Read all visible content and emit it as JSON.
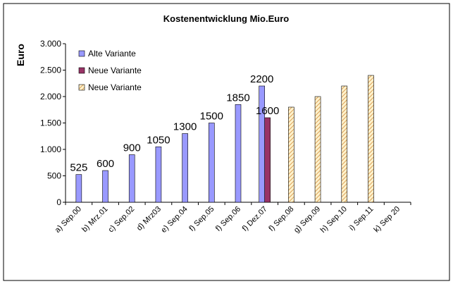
{
  "chart_data": {
    "type": "bar",
    "title": "Kostenentwicklung Mio.Euro",
    "ylabel": "Euro",
    "xlabel": "",
    "ylim": [
      0,
      3000
    ],
    "yticks": [
      0,
      500,
      1000,
      1500,
      2000,
      2500,
      3000
    ],
    "ytick_labels": [
      "0",
      "500",
      "1.000",
      "1.500",
      "2.000",
      "2.500",
      "3.000"
    ],
    "grid": false,
    "legend_position": "top-left",
    "categories": [
      "a) Sep.00",
      "b) Mrz.01",
      "c) Sep.02",
      "d) Mrz03",
      "e) Sep.04",
      "f) Sep.05",
      "f) Sep.06",
      "f) Dez.07",
      "f) Sep.08",
      "g) Sep.09",
      "h) Sep.10",
      "i) Sep.11",
      "k) Sep 20"
    ],
    "series": [
      {
        "name": "Alte Variante",
        "color": "#9999FF",
        "pattern": "solid",
        "values": [
          525,
          600,
          900,
          1050,
          1300,
          1500,
          1850,
          2200,
          null,
          null,
          null,
          null,
          null
        ],
        "labels": [
          "525",
          "600",
          "900",
          "1050",
          "1300",
          "1500",
          "1850",
          "2200",
          null,
          null,
          null,
          null,
          null
        ]
      },
      {
        "name": "Neue Variante",
        "color": "#993366",
        "pattern": "solid",
        "values": [
          null,
          null,
          null,
          null,
          null,
          null,
          null,
          1600,
          null,
          null,
          null,
          null,
          null
        ],
        "labels": [
          null,
          null,
          null,
          null,
          null,
          null,
          null,
          "1600",
          null,
          null,
          null,
          null,
          null
        ]
      },
      {
        "name": "Neue Variante",
        "color": "#F0C080",
        "pattern": "hatched",
        "values": [
          null,
          null,
          null,
          null,
          null,
          null,
          null,
          null,
          1800,
          2000,
          2200,
          2400,
          null
        ],
        "labels": [
          null,
          null,
          null,
          null,
          null,
          null,
          null,
          null,
          null,
          null,
          null,
          null,
          null
        ]
      }
    ]
  }
}
